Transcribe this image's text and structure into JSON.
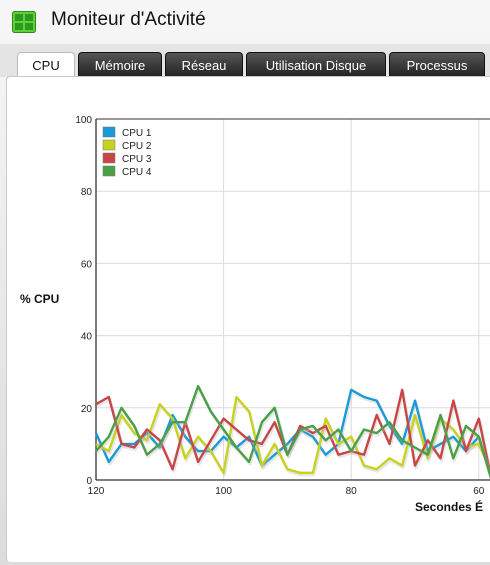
{
  "window": {
    "title": "Moniteur d'Activité"
  },
  "tabs": [
    {
      "label": "CPU",
      "active": true
    },
    {
      "label": "Mémoire",
      "active": false
    },
    {
      "label": "Réseau",
      "active": false
    },
    {
      "label": "Utilisation Disque",
      "active": false
    },
    {
      "label": "Processus",
      "active": false
    }
  ],
  "icons": {
    "app": "activity-monitor-icon"
  },
  "chart_data": {
    "type": "line",
    "ylabel": "% CPU",
    "xlabel": "Secondes É",
    "ylim": [
      0,
      100
    ],
    "xlim_visible": [
      120,
      58
    ],
    "x_reversed": true,
    "yticks": [
      0,
      20,
      40,
      60,
      80,
      100
    ],
    "xticks": [
      120,
      100,
      80,
      60
    ],
    "grid": true,
    "legend_position": "top-left",
    "x": [
      120,
      118,
      116,
      114,
      112,
      110,
      108,
      106,
      104,
      102,
      100,
      98,
      96,
      94,
      92,
      90,
      88,
      86,
      84,
      82,
      80,
      78,
      76,
      74,
      72,
      70,
      68,
      66,
      64,
      62,
      60,
      58
    ],
    "series": [
      {
        "name": "CPU 1",
        "color": "#1a9ad6",
        "values": [
          13,
          5,
          10,
          10,
          13,
          9,
          18,
          12,
          8,
          8,
          12,
          9,
          12,
          4,
          7,
          10,
          14,
          12,
          7,
          10,
          25,
          23,
          22,
          15,
          10,
          22,
          8,
          10,
          12,
          8,
          12,
          0
        ]
      },
      {
        "name": "CPU 2",
        "color": "#c8d21e",
        "values": [
          10,
          8,
          18,
          13,
          11,
          21,
          17,
          6,
          12,
          8,
          2,
          23,
          19,
          4,
          10,
          3,
          2,
          2,
          17,
          10,
          12,
          4,
          3,
          6,
          4,
          18,
          6,
          17,
          14,
          9,
          10,
          2
        ]
      },
      {
        "name": "CPU 3",
        "color": "#c84646",
        "values": [
          21,
          23,
          10,
          9,
          14,
          11,
          3,
          16,
          5,
          11,
          17,
          14,
          11,
          10,
          16,
          7,
          15,
          13,
          15,
          7,
          8,
          7,
          18,
          10,
          25,
          4,
          11,
          6,
          22,
          8,
          17,
          0
        ]
      },
      {
        "name": "CPU 4",
        "color": "#4b9f46",
        "values": [
          8,
          12,
          20,
          15,
          7,
          10,
          16,
          16,
          26,
          19,
          14,
          9,
          5,
          16,
          20,
          7,
          14,
          15,
          11,
          14,
          8,
          14,
          13,
          16,
          11,
          9,
          7,
          18,
          6,
          15,
          12,
          0
        ]
      }
    ]
  }
}
